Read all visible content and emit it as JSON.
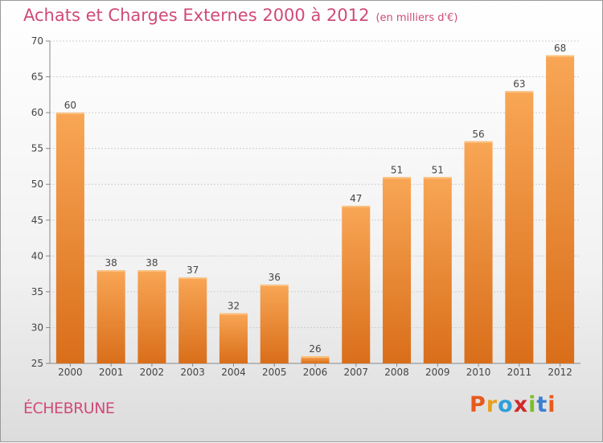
{
  "title": "Achats et Charges Externes 2000 à 2012",
  "unit": "(en milliers d'€)",
  "place": "ÉCHEBRUNE",
  "logo": {
    "letters": [
      "P",
      "r",
      "o",
      "x",
      "i",
      "t",
      "i"
    ],
    "colors": [
      "#e8591c",
      "#e8a020",
      "#2f9fd8",
      "#d02a2a",
      "#7cbf2a",
      "#3a7fd0",
      "#e8591c"
    ]
  },
  "colors": {
    "bar_top": "#f8a655",
    "bar_bottom": "#d96e1a",
    "title": "#d04a7a"
  },
  "chart_data": {
    "type": "bar",
    "categories": [
      "2000",
      "2001",
      "2002",
      "2003",
      "2004",
      "2005",
      "2006",
      "2007",
      "2008",
      "2009",
      "2010",
      "2011",
      "2012"
    ],
    "values": [
      60,
      38,
      38,
      37,
      32,
      36,
      26,
      47,
      51,
      51,
      56,
      63,
      68
    ],
    "ylim": [
      25,
      70
    ],
    "yticks": [
      25,
      30,
      35,
      40,
      45,
      50,
      55,
      60,
      65,
      70
    ],
    "grid": true,
    "data_labels": true
  }
}
